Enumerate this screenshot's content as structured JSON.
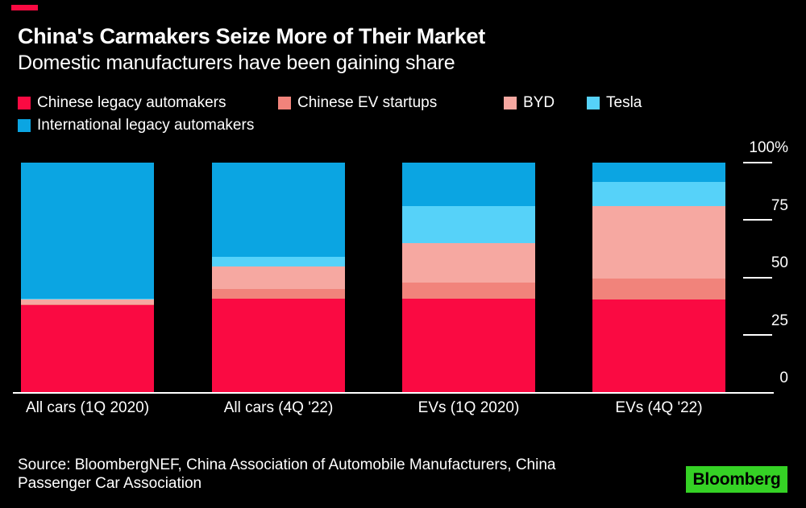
{
  "header": {
    "title": "China's Carmakers Seize More of Their Market",
    "subtitle": "Domestic manufacturers have been gaining share"
  },
  "colors": {
    "background": "#000000",
    "accent_red": "#fa0a42",
    "text": "#ffffff",
    "axis": "#ffffff",
    "logo_green": "#35d225",
    "logo_text": "#000000"
  },
  "chart_data": {
    "type": "bar",
    "stacked": true,
    "unit": "%",
    "title": "China's Carmakers Seize More of Their Market",
    "subtitle": "Domestic manufacturers have been gaining share",
    "categories": [
      "All cars (1Q 2020)",
      "All cars (4Q '22)",
      "EVs (1Q 2020)",
      "EVs (4Q '22)"
    ],
    "series": [
      {
        "name": "Chinese legacy automakers",
        "color": "#fa0a42",
        "values": [
          38,
          41,
          41,
          40.5
        ]
      },
      {
        "name": "Chinese EV startups",
        "color": "#f1837b",
        "values": [
          0.5,
          4,
          7,
          9
        ]
      },
      {
        "name": "BYD",
        "color": "#f6a8a1",
        "values": [
          2,
          10,
          17,
          31.5
        ]
      },
      {
        "name": "Tesla",
        "color": "#56d2f9",
        "values": [
          0.5,
          4,
          16,
          10.5
        ]
      },
      {
        "name": "International legacy automakers",
        "color": "#0ba5e2",
        "values": [
          59,
          41,
          19,
          8.5
        ]
      }
    ],
    "ylim": [
      0,
      100
    ],
    "yticks": [
      0,
      25,
      50,
      75,
      100
    ],
    "ytick_labels": [
      "0",
      "25",
      "50",
      "75",
      "100%"
    ],
    "grid": false,
    "legend_position": "top-left"
  },
  "footer": {
    "source": "Source: BloombergNEF, China Association of Automobile Manufacturers, China Passenger Car Association",
    "logo": "Bloomberg"
  }
}
